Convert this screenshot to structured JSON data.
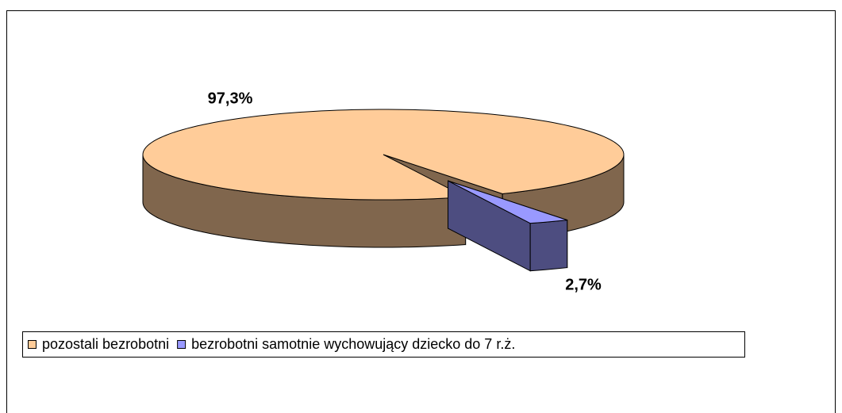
{
  "chart_data": {
    "type": "pie3d",
    "categories": [
      "pozostali bezrobotni",
      "bezrobotni samotnie wychowujący dziecko do 7 r.ż."
    ],
    "values": [
      97.3,
      2.7
    ],
    "value_labels": [
      "97,3%",
      "2,7%"
    ],
    "colors": [
      "#ffcc99",
      "#9999ff"
    ],
    "legend": "bottom-left"
  }
}
